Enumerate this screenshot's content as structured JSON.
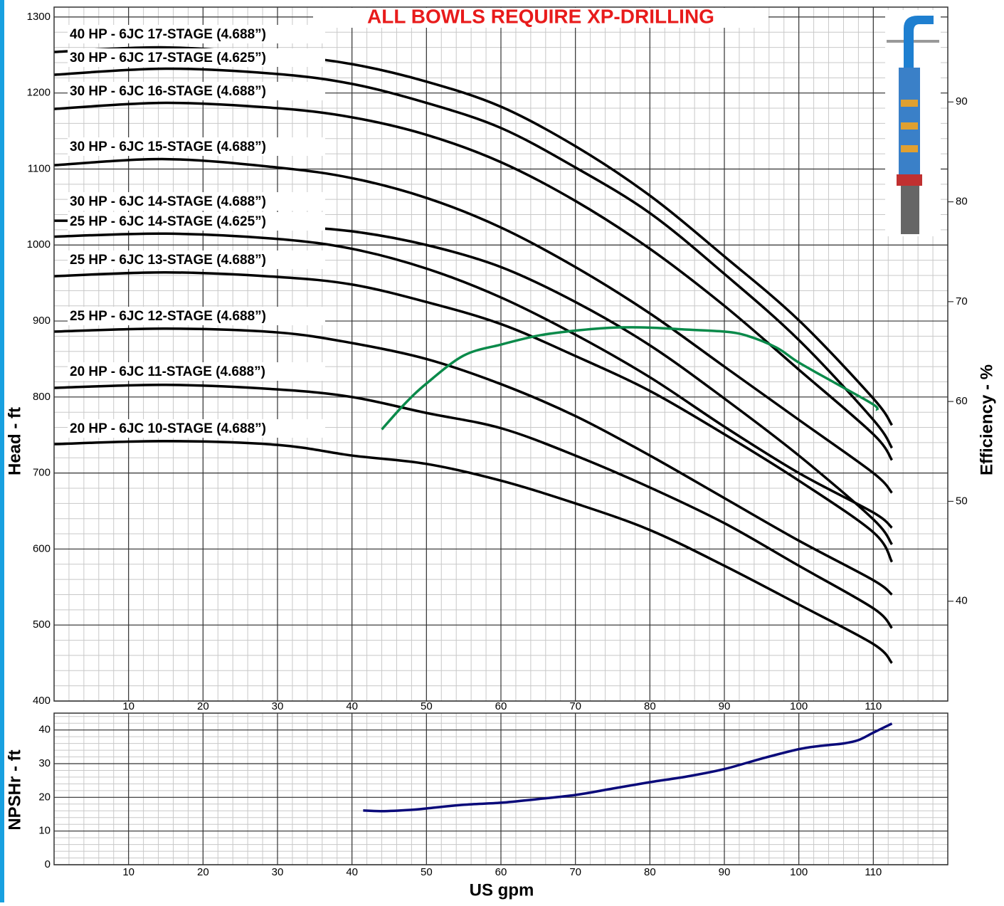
{
  "chart_data": [
    {
      "type": "line",
      "title": "ALL BOWLS REQUIRE XP-DRILLING",
      "y_label": "Head - ft",
      "y2_label": "Efficiency - %",
      "xlim": [
        0,
        120
      ],
      "xticks": [
        10,
        20,
        30,
        40,
        50,
        60,
        70,
        80,
        90,
        100,
        110
      ],
      "ylim": [
        400,
        1313
      ],
      "yticks": [
        400,
        500,
        600,
        700,
        800,
        900,
        1000,
        1100,
        1200,
        1300
      ],
      "y2lim": [
        30,
        99.5
      ],
      "y2ticks": [
        40,
        50,
        60,
        70,
        80,
        90
      ],
      "grid": true,
      "minor_grid": true,
      "series": [
        {
          "name": "40 HP - 6JC 17-STAGE (4.688”)",
          "color": "#000000",
          "x": [
            0,
            15,
            30,
            40,
            50,
            60,
            70,
            80,
            90,
            100,
            110,
            112.5
          ],
          "values": [
            1254,
            1260,
            1250,
            1238,
            1215,
            1182,
            1130,
            1065,
            985,
            901,
            798,
            763
          ]
        },
        {
          "name": "30 HP - 6JC 17-STAGE (4.625”)",
          "color": "#000000",
          "x": [
            0,
            15,
            30,
            40,
            50,
            60,
            70,
            80,
            90,
            100,
            110,
            112.5
          ],
          "values": [
            1224,
            1232,
            1225,
            1212,
            1187,
            1154,
            1102,
            1042,
            962,
            875,
            770,
            733
          ]
        },
        {
          "name": "30 HP - 6JC 16-STAGE (4.688”)",
          "color": "#000000",
          "x": [
            0,
            15,
            30,
            40,
            50,
            60,
            70,
            80,
            90,
            100,
            110,
            112.5
          ],
          "values": [
            1179,
            1187,
            1180,
            1168,
            1145,
            1109,
            1058,
            995,
            920,
            836,
            751,
            717
          ]
        },
        {
          "name": "30 HP - 6JC 15-STAGE (4.688”)",
          "color": "#000000",
          "x": [
            0,
            15,
            30,
            40,
            50,
            60,
            70,
            80,
            90,
            100,
            110,
            112.5
          ],
          "values": [
            1105,
            1113,
            1102,
            1088,
            1062,
            1023,
            971,
            910,
            840,
            770,
            700,
            674
          ]
        },
        {
          "name": "30 HP - 6JC 14-STAGE (4.688”)",
          "color": "#000000",
          "x": [
            0,
            15,
            30,
            40,
            50,
            60,
            70,
            80,
            90,
            100,
            110,
            112.5
          ],
          "values": [
            1011,
            1015,
            1008,
            995,
            969,
            931,
            882,
            826,
            761,
            700,
            648,
            628
          ]
        },
        {
          "name": "25 HP - 6JC 14-STAGE (4.625”)",
          "color": "#000000",
          "x": [
            0,
            15,
            30,
            40,
            50,
            60,
            70,
            80,
            90,
            100,
            110,
            112.5
          ],
          "values": [
            1032,
            1031,
            1025,
            1018,
            1000,
            971,
            925,
            868,
            798,
            723,
            639,
            606
          ]
        },
        {
          "name": "25 HP - 6JC 13-STAGE (4.688”)",
          "color": "#000000",
          "x": [
            0,
            15,
            30,
            40,
            50,
            60,
            70,
            80,
            90,
            100,
            110,
            112.5
          ],
          "values": [
            959,
            964,
            958,
            948,
            925,
            896,
            854,
            808,
            751,
            690,
            622,
            583
          ]
        },
        {
          "name": "25 HP - 6JC 12-STAGE (4.688”)",
          "color": "#000000",
          "x": [
            0,
            15,
            30,
            40,
            50,
            60,
            70,
            80,
            90,
            100,
            110,
            112.5
          ],
          "values": [
            886,
            890,
            885,
            871,
            850,
            817,
            775,
            723,
            667,
            611,
            559,
            540
          ]
        },
        {
          "name": "20 HP - 6JC 11-STAGE (4.688”)",
          "color": "#000000",
          "x": [
            0,
            15,
            30,
            40,
            50,
            60,
            70,
            80,
            90,
            100,
            110,
            112.5
          ],
          "values": [
            812,
            816,
            810,
            800,
            779,
            759,
            723,
            681,
            634,
            578,
            522,
            496
          ]
        },
        {
          "name": "20 HP - 6JC 10-STAGE (4.688”)",
          "color": "#000000",
          "x": [
            0,
            15,
            30,
            40,
            50,
            60,
            70,
            80,
            90,
            100,
            110,
            112.5
          ],
          "values": [
            738,
            742,
            737,
            723,
            712,
            690,
            660,
            625,
            578,
            527,
            475,
            450
          ]
        },
        {
          "color": "#0a8a4a",
          "axis": "y2",
          "x": [
            44,
            47,
            50,
            55,
            60,
            65,
            70,
            75,
            80,
            85,
            90,
            93,
            97,
            100,
            105,
            110,
            110.5
          ],
          "values": [
            57.2,
            59.7,
            61.8,
            64.6,
            65.7,
            66.6,
            67.1,
            67.4,
            67.4,
            67.2,
            67.0,
            66.6,
            65.4,
            63.9,
            61.8,
            59.7,
            59.1
          ]
        }
      ]
    },
    {
      "type": "line",
      "y_label": "NPSHr - ft",
      "x_label": "US gpm",
      "xlim": [
        0,
        120
      ],
      "xticks": [
        10,
        20,
        30,
        40,
        50,
        60,
        70,
        80,
        90,
        100,
        110
      ],
      "ylim": [
        0,
        45
      ],
      "yticks": [
        0,
        10,
        20,
        30,
        40
      ],
      "grid": true,
      "minor_grid": true,
      "series": [
        {
          "color": "#0a0a7a",
          "x": [
            41.5,
            44,
            48,
            50,
            55,
            60,
            65,
            70,
            75,
            80,
            85,
            90,
            95,
            100,
            103,
            106,
            108,
            110,
            112.5
          ],
          "values": [
            16.1,
            15.9,
            16.3,
            16.7,
            17.8,
            18.4,
            19.5,
            20.7,
            22.6,
            24.5,
            26.2,
            28.4,
            31.5,
            34.3,
            35.3,
            36.0,
            37.0,
            39.2,
            41.9
          ]
        }
      ]
    }
  ]
}
